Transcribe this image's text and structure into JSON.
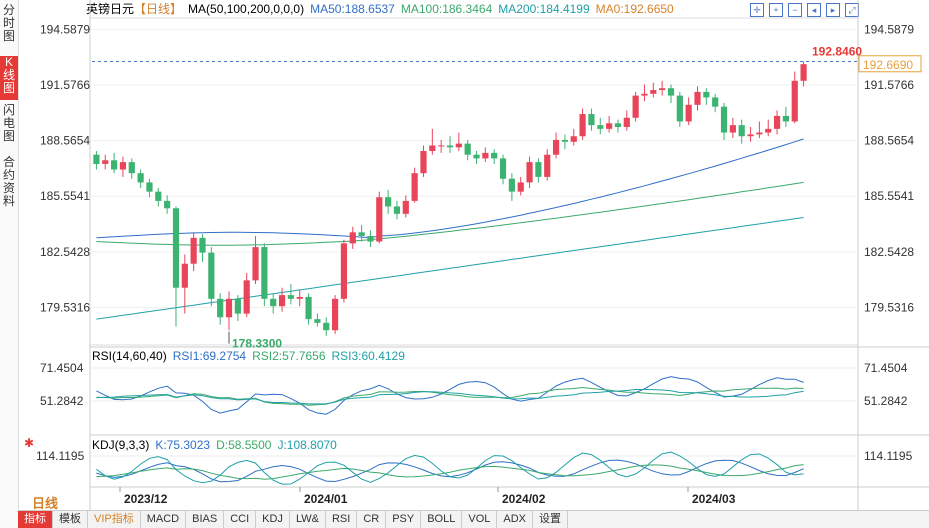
{
  "sidebar": {
    "tabs": [
      {
        "label": "分时图",
        "active": false
      },
      {
        "label": "K线图",
        "active": true
      },
      {
        "label": "闪电图",
        "active": false
      },
      {
        "label": "合约资料",
        "active": false
      }
    ]
  },
  "header": {
    "symbol": "英镑日元",
    "period": "【日线】",
    "ma_params": "MA(50,100,200,0,0,0)",
    "ma50": "MA50:188.6537",
    "ma100": "MA100:186.3464",
    "ma200": "MA200:184.4199",
    "ma0": "MA0:192.6650"
  },
  "colors": {
    "up": "#e8455a",
    "down": "#3cb371",
    "ma50": "#2f6fc7",
    "ma100": "#3aaa6a",
    "ma200": "#20a0a8",
    "price_tag": "#e8a23a"
  },
  "price_axis": {
    "ticks": [
      "194.5879",
      "191.5766",
      "188.5654",
      "185.5541",
      "182.5428",
      "179.5316"
    ],
    "current_price": "192.6690",
    "high_label": "192.8460",
    "low_label": "178.3300"
  },
  "date_axis": {
    "labels": [
      "2023/12",
      "2024/01",
      "2024/02",
      "2024/03"
    ]
  },
  "rsi": {
    "title": "RSI(14,60,40)",
    "rsi1": "RSI1:69.2754",
    "rsi2": "RSI2:57.7656",
    "rsi3": "RSI3:60.4129",
    "ticks": [
      "71.4504",
      "51.2842"
    ]
  },
  "kdj": {
    "title": "KDJ(9,3,3)",
    "k": "K:75.3023",
    "d": "D:58.5500",
    "j": "J:108.8070",
    "ticks": [
      "114.1195"
    ]
  },
  "period_button": "日线",
  "bottom_tabs": [
    "指标",
    "模板",
    "VIP指标",
    "MACD",
    "BIAS",
    "CCI",
    "KDJ",
    "LW&",
    "RSI",
    "CR",
    "PSY",
    "BOLL",
    "VOL",
    "ADX",
    "设置"
  ],
  "chart_data": {
    "type": "candlestick",
    "title": "英镑日元",
    "ylim": [
      177.5,
      195.2
    ],
    "x_labels": [
      "2023/12",
      "2024/01",
      "2024/02",
      "2024/03"
    ],
    "candles": [
      [
        187.8,
        187.3,
        188.0,
        187.0
      ],
      [
        187.3,
        187.5,
        187.8,
        187.0
      ],
      [
        187.5,
        187.0,
        187.9,
        186.8
      ],
      [
        187.0,
        187.4,
        187.7,
        186.6
      ],
      [
        187.4,
        186.8,
        187.6,
        186.5
      ],
      [
        186.8,
        186.3,
        187.0,
        186.0
      ],
      [
        186.3,
        185.8,
        186.5,
        185.5
      ],
      [
        185.8,
        185.3,
        186.0,
        185.0
      ],
      [
        185.3,
        184.9,
        185.6,
        184.6
      ],
      [
        184.9,
        180.6,
        185.0,
        178.5
      ],
      [
        180.6,
        181.9,
        182.4,
        179.2
      ],
      [
        181.9,
        183.3,
        183.6,
        181.5
      ],
      [
        183.3,
        182.5,
        183.5,
        182.0
      ],
      [
        182.5,
        180.0,
        182.8,
        179.6
      ],
      [
        180.0,
        179.0,
        180.3,
        178.6
      ],
      [
        179.0,
        180.0,
        180.4,
        178.3
      ],
      [
        180.0,
        179.2,
        180.2,
        178.8
      ],
      [
        179.2,
        181.0,
        181.4,
        179.0
      ],
      [
        181.0,
        182.8,
        183.4,
        180.8
      ],
      [
        182.8,
        180.0,
        183.0,
        179.6
      ],
      [
        180.0,
        179.6,
        180.3,
        179.2
      ],
      [
        179.6,
        180.2,
        180.6,
        179.3
      ],
      [
        180.2,
        180.0,
        180.8,
        179.7
      ],
      [
        180.0,
        180.1,
        180.5,
        179.6
      ],
      [
        180.1,
        178.9,
        180.3,
        178.6
      ],
      [
        178.9,
        178.7,
        179.2,
        178.5
      ],
      [
        178.7,
        178.3,
        179.0,
        178.0
      ],
      [
        178.3,
        180.0,
        180.2,
        178.1
      ],
      [
        180.0,
        183.0,
        183.2,
        179.8
      ],
      [
        183.0,
        183.6,
        183.9,
        182.7
      ],
      [
        183.6,
        183.4,
        184.0,
        183.1
      ],
      [
        183.4,
        183.1,
        183.7,
        182.8
      ],
      [
        183.1,
        185.5,
        185.8,
        183.0
      ],
      [
        185.5,
        185.0,
        185.9,
        184.6
      ],
      [
        185.0,
        184.6,
        185.3,
        184.3
      ],
      [
        184.6,
        185.3,
        185.6,
        184.4
      ],
      [
        185.3,
        186.8,
        187.1,
        185.2
      ],
      [
        186.8,
        188.0,
        188.3,
        186.6
      ],
      [
        188.0,
        188.3,
        189.2,
        187.8
      ],
      [
        188.3,
        188.3,
        188.6,
        187.9
      ],
      [
        188.3,
        188.2,
        188.8,
        187.9
      ],
      [
        188.2,
        188.4,
        189.0,
        188.0
      ],
      [
        188.4,
        187.8,
        188.6,
        187.5
      ],
      [
        187.8,
        187.6,
        188.0,
        187.3
      ],
      [
        187.6,
        187.9,
        188.2,
        187.4
      ],
      [
        187.9,
        187.6,
        188.1,
        187.3
      ],
      [
        187.6,
        186.5,
        187.8,
        186.2
      ],
      [
        186.5,
        185.8,
        186.8,
        185.3
      ],
      [
        185.8,
        186.3,
        186.6,
        185.6
      ],
      [
        186.3,
        187.4,
        187.7,
        186.0
      ],
      [
        187.4,
        186.6,
        187.6,
        186.3
      ],
      [
        186.6,
        187.8,
        188.1,
        186.4
      ],
      [
        187.8,
        188.6,
        189.0,
        187.6
      ],
      [
        188.6,
        188.5,
        188.9,
        188.1
      ],
      [
        188.5,
        188.8,
        189.2,
        188.3
      ],
      [
        188.8,
        190.0,
        190.3,
        188.6
      ],
      [
        190.0,
        189.4,
        190.3,
        189.1
      ],
      [
        189.4,
        189.2,
        189.8,
        188.9
      ],
      [
        189.2,
        189.5,
        189.9,
        189.0
      ],
      [
        189.5,
        189.3,
        189.7,
        189.0
      ],
      [
        189.3,
        189.8,
        190.2,
        189.1
      ],
      [
        189.8,
        191.0,
        191.2,
        189.6
      ],
      [
        191.0,
        191.1,
        191.6,
        190.7
      ],
      [
        191.1,
        191.3,
        191.7,
        190.9
      ],
      [
        191.3,
        191.4,
        191.8,
        191.0
      ],
      [
        191.4,
        191.0,
        191.6,
        190.6
      ],
      [
        191.0,
        189.6,
        191.2,
        189.3
      ],
      [
        189.6,
        190.5,
        190.9,
        189.4
      ],
      [
        190.5,
        191.2,
        191.5,
        190.2
      ],
      [
        191.2,
        190.9,
        191.4,
        190.5
      ],
      [
        190.9,
        190.4,
        191.1,
        190.1
      ],
      [
        190.4,
        189.0,
        190.6,
        188.6
      ],
      [
        189.0,
        189.4,
        189.8,
        188.7
      ],
      [
        189.4,
        188.8,
        189.7,
        188.4
      ],
      [
        188.8,
        188.9,
        189.3,
        188.5
      ],
      [
        188.9,
        189.0,
        189.6,
        188.7
      ],
      [
        189.0,
        189.2,
        189.7,
        188.8
      ],
      [
        189.2,
        189.9,
        190.2,
        188.9
      ],
      [
        189.9,
        189.6,
        190.4,
        189.3
      ],
      [
        189.6,
        191.8,
        192.3,
        189.5
      ],
      [
        191.8,
        192.7,
        192.85,
        191.5
      ]
    ]
  }
}
